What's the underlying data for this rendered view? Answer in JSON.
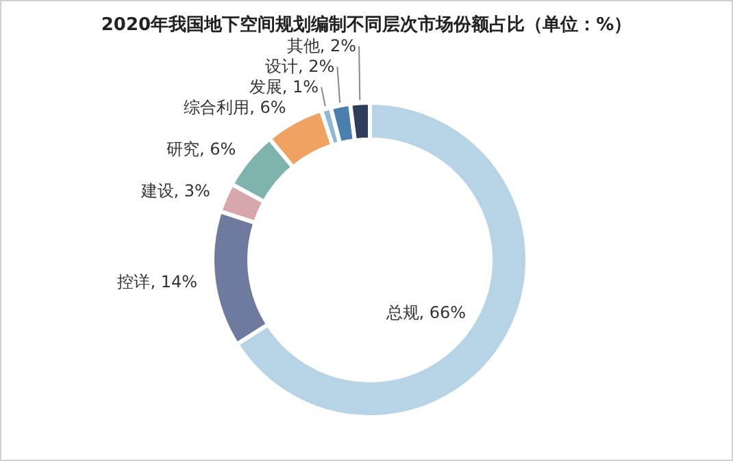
{
  "chart_data": {
    "type": "donut",
    "title": "2020年我国地下空间规划编制不同层次市场份额占比（单位：%）",
    "categories": [
      "总规",
      "控详",
      "建设",
      "研究",
      "综合利用",
      "发展",
      "设计",
      "其他"
    ],
    "values": [
      66,
      14,
      3,
      6,
      6,
      1,
      2,
      2
    ],
    "colors": [
      "#b7d3e6",
      "#6f7a9f",
      "#d8a7ae",
      "#7fb3ae",
      "#f0a262",
      "#8fb8d8",
      "#4b7fae",
      "#2f3d5c"
    ],
    "value_labels": [
      "66%",
      "14%",
      "3%",
      "6%",
      "6%",
      "1%",
      "2%",
      "2%"
    ]
  }
}
